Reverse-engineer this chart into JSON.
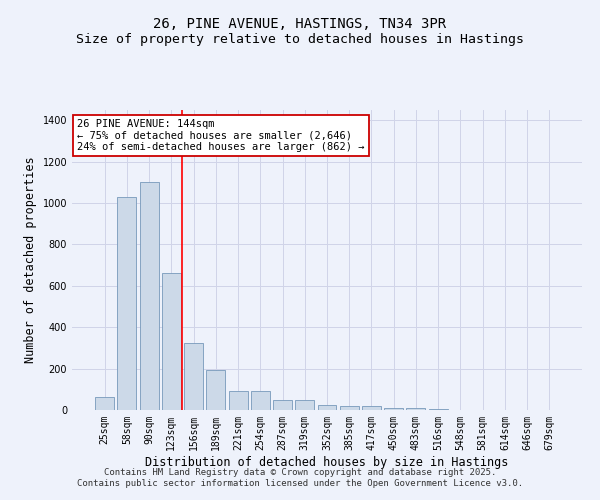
{
  "title": "26, PINE AVENUE, HASTINGS, TN34 3PR",
  "subtitle": "Size of property relative to detached houses in Hastings",
  "xlabel": "Distribution of detached houses by size in Hastings",
  "ylabel": "Number of detached properties",
  "categories": [
    "25sqm",
    "58sqm",
    "90sqm",
    "123sqm",
    "156sqm",
    "189sqm",
    "221sqm",
    "254sqm",
    "287sqm",
    "319sqm",
    "352sqm",
    "385sqm",
    "417sqm",
    "450sqm",
    "483sqm",
    "516sqm",
    "548sqm",
    "581sqm",
    "614sqm",
    "646sqm",
    "679sqm"
  ],
  "values": [
    62,
    1030,
    1100,
    660,
    325,
    192,
    90,
    90,
    47,
    47,
    25,
    20,
    20,
    10,
    10,
    5,
    0,
    0,
    0,
    0,
    0
  ],
  "bar_color": "#ccd9e8",
  "bar_edge_color": "#7799bb",
  "bg_color": "#eef2fb",
  "grid_color": "#d0d4e8",
  "red_line_index": 3.5,
  "annotation_text": "26 PINE AVENUE: 144sqm\n← 75% of detached houses are smaller (2,646)\n24% of semi-detached houses are larger (862) →",
  "annotation_box_color": "#ffffff",
  "annotation_box_edge": "#cc0000",
  "ylim": [
    0,
    1450
  ],
  "yticks": [
    0,
    200,
    400,
    600,
    800,
    1000,
    1200,
    1400
  ],
  "footer_line1": "Contains HM Land Registry data © Crown copyright and database right 2025.",
  "footer_line2": "Contains public sector information licensed under the Open Government Licence v3.0.",
  "title_fontsize": 10,
  "subtitle_fontsize": 9.5,
  "axis_label_fontsize": 8.5,
  "tick_fontsize": 7,
  "annotation_fontsize": 7.5,
  "footer_fontsize": 6.5
}
